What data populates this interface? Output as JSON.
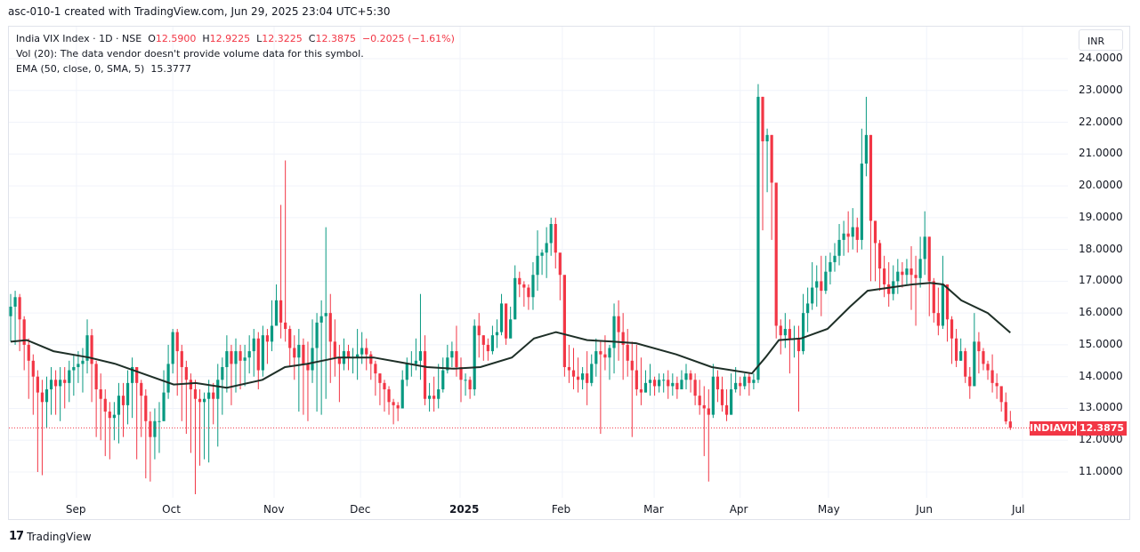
{
  "credit": "asc-010-1 created with TradingView.com, Jun 29, 2025 23:04 UTC+5:30",
  "legend": {
    "symbol": "India VIX Index · 1D · NSE",
    "o_label": "O",
    "o": "12.5900",
    "h_label": "H",
    "h": "12.9225",
    "l_label": "L",
    "l": "12.3225",
    "c_label": "C",
    "c": "12.3875",
    "change": "−0.2025 (−1.61%)",
    "vol": "Vol (20): The data vendor doesn't provide volume data for this symbol.",
    "ema_label": "EMA (50, close, 0, SMA, 5)",
    "ema_value": "15.3777"
  },
  "currency": "INR",
  "price_tag": {
    "symbol": "INDIAVIX",
    "value": "12.3875"
  },
  "footer": {
    "brand": "TradingView"
  },
  "colors": {
    "up": "#089981",
    "down": "#f23645",
    "ema": "#1e2f27",
    "grid": "#f0f3fa"
  },
  "chart_data": {
    "type": "candlestick",
    "title": "India VIX Index · 1D · NSE",
    "y_ticks": [
      "24.0000",
      "23.0000",
      "22.0000",
      "21.0000",
      "20.0000",
      "19.0000",
      "18.0000",
      "17.0000",
      "16.0000",
      "15.0000",
      "14.0000",
      "13.0000",
      "12.0000",
      "11.0000"
    ],
    "ylim": [
      10.05,
      24.4
    ],
    "x_ticks": [
      "Sep",
      "Oct",
      "Nov",
      "Dec",
      "2025",
      "Feb",
      "Mar",
      "Apr",
      "May",
      "Jun",
      "Jul"
    ],
    "x_tick_candle_index": [
      14.6,
      36,
      58.5,
      77.7,
      99.8,
      122.5,
      142.9,
      162,
      181.6,
      203.4,
      224.7
    ],
    "first_open": 15.9,
    "close": [
      16.2,
      16.5,
      15.8,
      15.0,
      14.5,
      14.0,
      13.5,
      13.2,
      13.6,
      13.9,
      13.7,
      13.9,
      13.8,
      14.2,
      14.3,
      14.4,
      14.5,
      15.3,
      14.4,
      13.6,
      13.3,
      12.9,
      12.7,
      12.8,
      13.4,
      13.1,
      13.8,
      14.3,
      13.8,
      13.4,
      12.6,
      12.1,
      12.6,
      12.6,
      13.5,
      14.4,
      15.4,
      14.8,
      14.3,
      13.9,
      13.6,
      13.3,
      13.2,
      13.3,
      13.5,
      13.3,
      13.9,
      14.3,
      14.8,
      14.4,
      14.8,
      14.5,
      14.6,
      14.8,
      15.2,
      14.2,
      15.3,
      15.1,
      15.6,
      16.4,
      15.7,
      15.5,
      14.9,
      14.6,
      15.0,
      14.4,
      14.2,
      14.9,
      15.7,
      15.9,
      16.0,
      15.1,
      14.6,
      14.4,
      14.8,
      14.6,
      14.6,
      14.7,
      14.9,
      14.7,
      14.4,
      14.1,
      13.8,
      13.6,
      13.2,
      13.1,
      13.0,
      13.9,
      14.4,
      14.4,
      14.5,
      14.8,
      13.3,
      13.4,
      13.3,
      13.6,
      14.2,
      14.6,
      14.8,
      14.3,
      13.9,
      13.9,
      13.6,
      15.6,
      15.3,
      15.0,
      14.8,
      15.3,
      15.4,
      16.3,
      15.2,
      15.8,
      17.1,
      16.9,
      16.8,
      16.5,
      17.2,
      17.8,
      17.9,
      18.2,
      18.8,
      17.9,
      17.2,
      14.3,
      14.2,
      14.0,
      13.9,
      14.1,
      13.8,
      14.4,
      14.8,
      14.7,
      14.6,
      14.9,
      15.9,
      15.4,
      15.0,
      14.5,
      14.2,
      13.6,
      13.5,
      13.8,
      13.9,
      13.7,
      13.9,
      13.9,
      13.7,
      13.8,
      13.6,
      13.9,
      14.1,
      13.9,
      13.4,
      13.1,
      13.0,
      12.8,
      14.0,
      13.6,
      13.1,
      12.8,
      13.6,
      13.8,
      13.7,
      14.0,
      13.8,
      13.9,
      22.8,
      21.4,
      21.6,
      20.1,
      15.6,
      15.3,
      15.5,
      15.2,
      15.2,
      14.8,
      16.0,
      16.3,
      16.8,
      17.0,
      16.7,
      17.3,
      17.6,
      17.8,
      18.3,
      18.5,
      18.4,
      18.7,
      18.3,
      20.7,
      21.6,
      18.9,
      18.2,
      17.4,
      16.9,
      16.6,
      17.0,
      17.3,
      17.2,
      17.4,
      17.2,
      17.1,
      17.7,
      18.4,
      17.0,
      16.0,
      15.6,
      16.9,
      15.8,
      15.2,
      14.5,
      14.8,
      14.0,
      13.7,
      15.1,
      14.8,
      14.4,
      14.2,
      13.8,
      13.7,
      13.2,
      12.59,
      12.3875
    ],
    "high": [
      16.6,
      16.7,
      16.6,
      15.9,
      15.2,
      14.7,
      14.2,
      13.9,
      14.0,
      14.3,
      14.2,
      14.3,
      14.3,
      14.5,
      14.7,
      14.8,
      14.9,
      15.8,
      15.5,
      14.5,
      14.1,
      13.6,
      13.2,
      13.2,
      13.8,
      13.8,
      14.2,
      14.6,
      14.2,
      13.9,
      13.6,
      12.9,
      13.0,
      13.2,
      14.2,
      15.0,
      15.5,
      15.5,
      15.0,
      14.5,
      14.1,
      13.9,
      13.6,
      13.5,
      13.9,
      13.8,
      14.4,
      14.6,
      15.3,
      15.0,
      15.2,
      15.0,
      15.0,
      15.3,
      15.5,
      15.4,
      15.6,
      15.5,
      16.4,
      16.9,
      19.4,
      20.8,
      15.6,
      15.3,
      15.5,
      15.2,
      15.1,
      15.8,
      16.0,
      16.4,
      18.7,
      16.6,
      15.8,
      15.0,
      15.2,
      15.0,
      14.9,
      15.5,
      15.4,
      15.2,
      14.8,
      14.5,
      14.1,
      13.9,
      13.7,
      13.3,
      13.2,
      14.2,
      14.6,
      14.8,
      15.2,
      16.6,
      15.3,
      13.8,
      14.0,
      14.4,
      14.6,
      15.0,
      15.1,
      15.6,
      14.6,
      14.1,
      14.0,
      15.8,
      16.0,
      15.3,
      15.2,
      15.6,
      15.8,
      16.6,
      16.2,
      16.2,
      17.5,
      17.3,
      17.0,
      16.9,
      17.6,
      18.6,
      18.0,
      18.7,
      19.0,
      19.0,
      17.6,
      16.1,
      15.0,
      14.9,
      14.6,
      14.3,
      14.8,
      14.7,
      15.2,
      15.1,
      15.3,
      15.0,
      16.3,
      16.4,
      16.0,
      15.5,
      15.1,
      15.0,
      14.6,
      14.2,
      14.4,
      14.0,
      14.1,
      14.1,
      14.2,
      14.1,
      14.0,
      14.2,
      14.4,
      14.2,
      14.1,
      13.9,
      13.7,
      13.6,
      14.4,
      14.2,
      14.0,
      13.6,
      14.1,
      14.3,
      14.0,
      14.1,
      14.1,
      14.1,
      23.2,
      22.8,
      21.8,
      21.6,
      20.1,
      15.8,
      16.0,
      15.8,
      15.6,
      15.6,
      16.6,
      16.8,
      17.6,
      17.5,
      17.8,
      17.8,
      17.9,
      18.2,
      18.8,
      18.9,
      19.2,
      19.3,
      19.0,
      21.8,
      22.8,
      21.6,
      18.9,
      18.3,
      17.8,
      17.6,
      17.5,
      17.7,
      17.6,
      17.7,
      18.1,
      17.8,
      18.4,
      19.2,
      18.4,
      17.1,
      16.8,
      17.8,
      16.9,
      15.9,
      15.5,
      15.2,
      14.9,
      14.3,
      16.0,
      15.4,
      14.9,
      14.5,
      14.7,
      14.1,
      13.6,
      13.5,
      12.9225
    ],
    "low": [
      15.1,
      15.0,
      14.8,
      14.2,
      13.3,
      12.8,
      11.0,
      10.9,
      12.4,
      12.8,
      12.8,
      12.6,
      13.0,
      13.2,
      13.4,
      13.8,
      13.5,
      14.1,
      13.2,
      12.1,
      12.0,
      11.5,
      11.4,
      12.0,
      11.9,
      12.1,
      12.5,
      12.7,
      11.4,
      12.1,
      10.8,
      10.7,
      11.4,
      11.6,
      12.6,
      13.3,
      14.1,
      13.4,
      12.6,
      12.2,
      11.6,
      10.3,
      11.2,
      11.4,
      11.3,
      12.5,
      11.8,
      12.8,
      13.5,
      13.1,
      13.5,
      13.6,
      13.7,
      14.1,
      14.0,
      13.6,
      14.0,
      14.4,
      14.8,
      15.6,
      15.2,
      15.1,
      14.3,
      13.9,
      12.9,
      12.8,
      12.6,
      13.8,
      12.9,
      12.8,
      13.3,
      13.8,
      14.0,
      13.2,
      14.2,
      14.2,
      14.1,
      13.9,
      14.4,
      14.2,
      13.9,
      13.4,
      13.1,
      12.9,
      12.8,
      12.5,
      12.6,
      13.0,
      13.7,
      14.0,
      14.2,
      13.9,
      13.1,
      12.9,
      12.9,
      13.0,
      13.5,
      14.1,
      14.3,
      14.0,
      13.2,
      13.4,
      13.3,
      13.4,
      14.6,
      14.5,
      14.5,
      14.7,
      14.9,
      15.3,
      15.0,
      15.4,
      15.8,
      16.5,
      16.2,
      16.1,
      16.1,
      16.7,
      17.2,
      17.1,
      17.8,
      17.4,
      16.4,
      14.0,
      13.8,
      13.6,
      13.5,
      13.6,
      13.1,
      13.7,
      14.0,
      12.2,
      14.2,
      13.9,
      14.1,
      14.5,
      13.9,
      14.0,
      12.1,
      13.4,
      13.1,
      13.5,
      13.4,
      13.4,
      13.5,
      13.5,
      13.3,
      13.4,
      13.3,
      13.6,
      13.6,
      13.5,
      13.1,
      12.8,
      11.5,
      10.7,
      12.7,
      13.2,
      12.9,
      12.6,
      12.8,
      13.5,
      13.4,
      13.6,
      13.4,
      13.6,
      13.8,
      18.6,
      19.8,
      18.3,
      15.2,
      14.7,
      14.9,
      14.1,
      14.6,
      12.9,
      14.7,
      15.4,
      16.1,
      16.2,
      15.9,
      16.6,
      16.9,
      17.3,
      17.5,
      17.8,
      17.9,
      18.0,
      17.9,
      18.0,
      20.3,
      17.0,
      17.0,
      16.7,
      16.5,
      16.2,
      16.4,
      16.6,
      16.8,
      16.9,
      16.1,
      15.6,
      16.8,
      17.2,
      15.9,
      15.7,
      15.3,
      15.5,
      15.1,
      14.4,
      14.3,
      14.5,
      13.8,
      13.3,
      13.7,
      14.1,
      14.2,
      13.9,
      13.5,
      13.3,
      12.9,
      12.5,
      12.3225
    ],
    "ema": [
      [
        0,
        15.1
      ],
      [
        3.6,
        15.15
      ],
      [
        9.5,
        14.8
      ],
      [
        17.4,
        14.6
      ],
      [
        23.3,
        14.4
      ],
      [
        29.2,
        14.1
      ],
      [
        36.2,
        13.75
      ],
      [
        41.1,
        13.8
      ],
      [
        48,
        13.65
      ],
      [
        55.9,
        13.9
      ],
      [
        60.9,
        14.3
      ],
      [
        65.8,
        14.4
      ],
      [
        72.7,
        14.6
      ],
      [
        80.6,
        14.6
      ],
      [
        86.6,
        14.45
      ],
      [
        92.5,
        14.3
      ],
      [
        98.4,
        14.25
      ],
      [
        104.3,
        14.3
      ],
      [
        111.3,
        14.6
      ],
      [
        116.2,
        15.2
      ],
      [
        121.1,
        15.4
      ],
      [
        128,
        15.15
      ],
      [
        134,
        15.1
      ],
      [
        138.9,
        15.05
      ],
      [
        147.8,
        14.7
      ],
      [
        155.7,
        14.3
      ],
      [
        164.6,
        14.1
      ],
      [
        167.6,
        14.6
      ],
      [
        170.6,
        15.15
      ],
      [
        175.5,
        15.2
      ],
      [
        181.4,
        15.5
      ],
      [
        186.4,
        16.2
      ],
      [
        190.3,
        16.7
      ],
      [
        195.3,
        16.8
      ],
      [
        200.2,
        16.9
      ],
      [
        204.2,
        16.95
      ],
      [
        207.1,
        16.9
      ],
      [
        211.1,
        16.4
      ],
      [
        217,
        16.0
      ],
      [
        222,
        15.38
      ]
    ],
    "last_price": 12.3875
  }
}
